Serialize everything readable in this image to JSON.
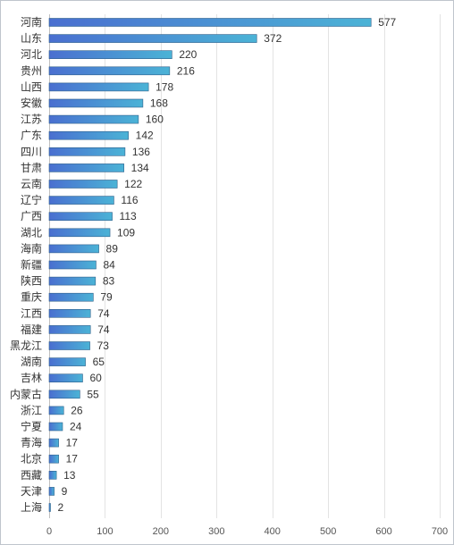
{
  "chart_data": {
    "type": "bar",
    "orientation": "horizontal",
    "title": "",
    "xlabel": "",
    "ylabel": "",
    "xlim": [
      0,
      700
    ],
    "x_ticks": [
      0,
      100,
      200,
      300,
      400,
      500,
      600,
      700
    ],
    "grid": true,
    "legend": "none",
    "colors": {
      "bar_start": "#4a6fd0",
      "bar_end": "#4bb3d6",
      "bar_border": "#2e5f8a",
      "grid": "#e3e3e3"
    },
    "categories": [
      "河南",
      "山东",
      "河北",
      "贵州",
      "山西",
      "安徽",
      "江苏",
      "广东",
      "四川",
      "甘肃",
      "云南",
      "辽宁",
      "广西",
      "湖北",
      "海南",
      "新疆",
      "陕西",
      "重庆",
      "江西",
      "福建",
      "黑龙江",
      "湖南",
      "吉林",
      "内蒙古",
      "浙江",
      "宁夏",
      "青海",
      "北京",
      "西藏",
      "天津",
      "上海"
    ],
    "values": [
      577,
      372,
      220,
      216,
      178,
      168,
      160,
      142,
      136,
      134,
      122,
      116,
      113,
      109,
      89,
      84,
      83,
      79,
      74,
      74,
      73,
      65,
      60,
      55,
      26,
      24,
      17,
      17,
      13,
      9,
      2
    ]
  }
}
